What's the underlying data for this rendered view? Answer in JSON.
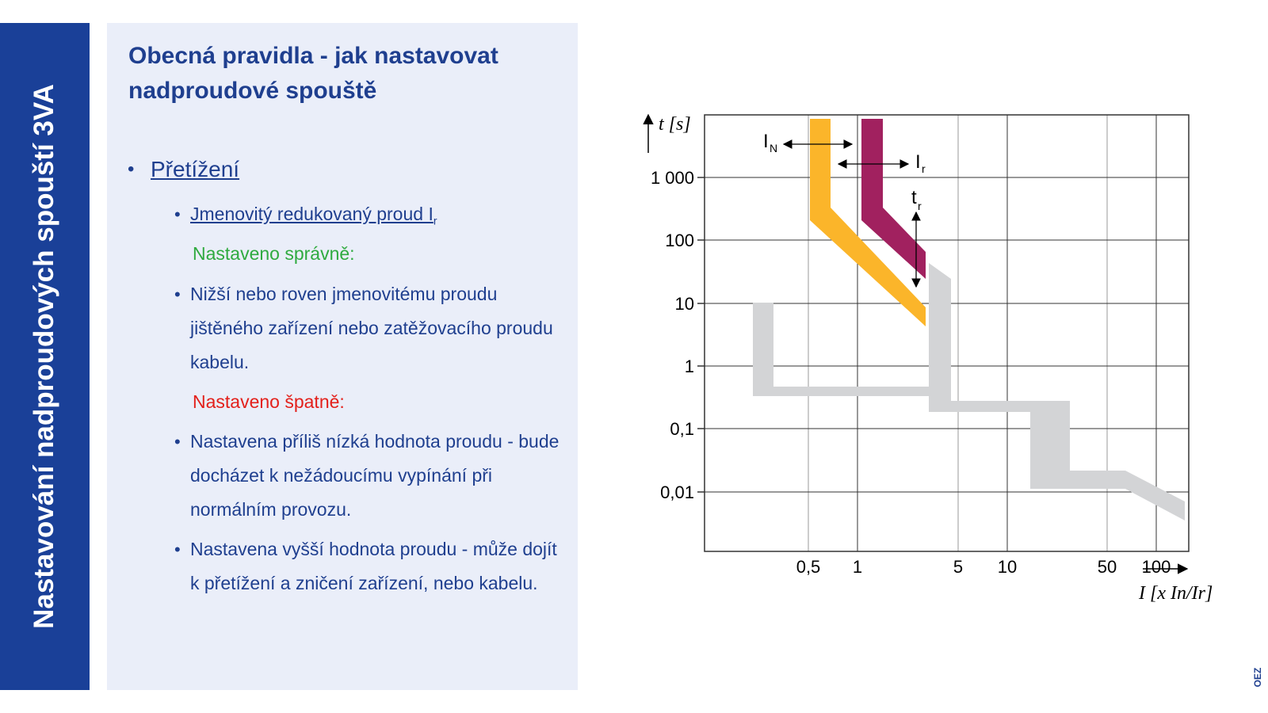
{
  "sidebar": {
    "title": "Nastavování nadproudových spouští 3VA"
  },
  "content": {
    "heading": "Obecná pravidla - jak nastavovat nadproudové spouště",
    "section_title": "Přetížení",
    "subsection_title": "Jmenovitý redukovaný proud I",
    "subsection_subscript": "r",
    "correct_label": "Nastaveno správně:",
    "correct_items": [
      "Nižší nebo roven  jmenovitému proudu jištěného zařízení nebo zatěžovacího proudu kabelu."
    ],
    "wrong_label": "Nastaveno špatně:",
    "wrong_items": [
      "Nastavena příliš nízká hodnota proudu - bude docházet k nežádoucímu vypínání při normálním provozu.",
      "Nastavena vyšší hodnota proudu - může dojít k přetížení a zničení zařízení, nebo kabelu."
    ]
  },
  "diagram": {
    "y_axis_label": "t [s]",
    "x_axis_label": "I [x In/Ir]",
    "y_tick_labels": [
      "1 000",
      "100",
      "10",
      "1",
      "0,1",
      "0,01"
    ],
    "x_tick_labels": [
      "0,5",
      "1",
      "5",
      "10",
      "50",
      "100"
    ],
    "label_in": "I",
    "label_in_sub": "N",
    "label_ir": "I",
    "label_ir_sub": "r",
    "label_tr": "t",
    "label_tr_sub": "r",
    "colors": {
      "orange_band": "#fbb52a",
      "magenta_band": "#a1215f",
      "gray_band": "#d3d4d6",
      "grid": "#333333"
    }
  },
  "logo": "OEZ"
}
